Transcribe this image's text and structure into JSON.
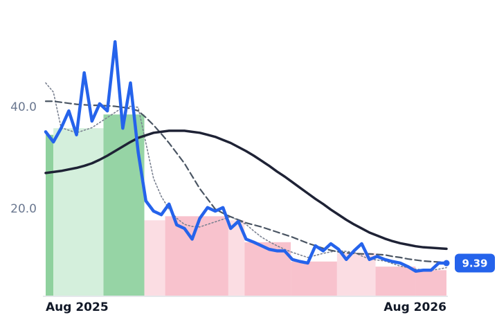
{
  "chart_data": {
    "type": "line",
    "categories": [
      "Aug 2025",
      null,
      null,
      null,
      null,
      null,
      null,
      null,
      null,
      null,
      null,
      null,
      null,
      null,
      null,
      null,
      null,
      null,
      null,
      null,
      null,
      null,
      null,
      null,
      null,
      null,
      null,
      null,
      null,
      null,
      null,
      null,
      null,
      null,
      null,
      null,
      null,
      null,
      null,
      null,
      null,
      null,
      null,
      null,
      null,
      null,
      null,
      null,
      null,
      null,
      null,
      null,
      "Aug 2026"
    ],
    "ylim": [
      3,
      56
    ],
    "yticks": [
      {
        "value": 20,
        "label": "20.0"
      },
      {
        "value": 40,
        "label": "40.0"
      }
    ],
    "bands": [
      {
        "from": 0,
        "to": 1,
        "value": 34.6,
        "color": "#8fd19e"
      },
      {
        "from": 1,
        "to": 7.5,
        "value": 35.9,
        "color": "#d4efdc"
      },
      {
        "from": 7.5,
        "to": 12.8,
        "value": 38.6,
        "color": "#96d4a5"
      },
      {
        "from": 12.8,
        "to": 15.5,
        "value": 17.8,
        "color": "#fbdde3"
      },
      {
        "from": 15.5,
        "to": 23.7,
        "value": 18.6,
        "color": "#f8c2cd"
      },
      {
        "from": 23.7,
        "to": 25.8,
        "value": 17.8,
        "color": "#fbdde3"
      },
      {
        "from": 25.8,
        "to": 31.8,
        "value": 13.5,
        "color": "#f8c2cd"
      },
      {
        "from": 31.8,
        "to": 37.8,
        "value": 9.7,
        "color": "#f8c2cd"
      },
      {
        "from": 37.8,
        "to": 42.8,
        "value": 11.4,
        "color": "#fbdde3"
      },
      {
        "from": 42.8,
        "to": 48,
        "value": 8.7,
        "color": "#f8c2cd"
      },
      {
        "from": 48,
        "to": 52,
        "value": 8.0,
        "color": "#f8c2cd"
      }
    ],
    "series": [
      {
        "color": "#2563eb",
        "dash": "solid",
        "width": 4.5,
        "values": [
          35.2,
          33.2,
          35.9,
          39.3,
          34.6,
          46.8,
          37.3,
          40.7,
          39.3,
          52.9,
          35.9,
          44.8,
          31.2,
          21.6,
          19.6,
          18.9,
          21.0,
          16.9,
          16.2,
          14.1,
          18.2,
          20.3,
          19.6,
          20.3,
          16.2,
          17.6,
          14.1,
          13.5,
          12.8,
          12.1,
          11.8,
          11.8,
          10.1,
          9.7,
          9.4,
          12.8,
          11.8,
          13.2,
          12.1,
          10.1,
          11.8,
          13.2,
          10.1,
          10.7,
          10.1,
          9.7,
          9.4,
          8.7,
          7.8,
          8.0,
          8.0,
          9.4,
          9.39
        ]
      },
      {
        "color": "#1e2235",
        "dash": "solid",
        "width": 3.5,
        "values": [
          27.1,
          27.3,
          27.5,
          27.8,
          28.1,
          28.5,
          29.0,
          29.7,
          30.5,
          31.4,
          32.3,
          33.2,
          34.0,
          34.5,
          35.0,
          35.2,
          35.4,
          35.4,
          35.4,
          35.2,
          35.0,
          34.6,
          34.2,
          33.6,
          33.0,
          32.2,
          31.4,
          30.5,
          29.5,
          28.5,
          27.4,
          26.4,
          25.3,
          24.2,
          23.1,
          22.0,
          21.0,
          19.9,
          18.9,
          17.9,
          17.0,
          16.2,
          15.4,
          14.8,
          14.2,
          13.7,
          13.3,
          13.0,
          12.7,
          12.5,
          12.4,
          12.3,
          12.2
        ]
      },
      {
        "color": "#4a5563",
        "dash": "dashed",
        "width": 2.2,
        "values": [
          41.2,
          41.2,
          41.0,
          40.8,
          40.6,
          40.5,
          40.4,
          40.4,
          40.3,
          40.2,
          40.0,
          39.8,
          39.3,
          38.0,
          36.5,
          34.8,
          33.0,
          31.0,
          29.0,
          26.5,
          24.0,
          22.0,
          20.0,
          19.2,
          18.5,
          17.9,
          17.3,
          16.9,
          16.5,
          16.0,
          15.5,
          15.0,
          14.5,
          13.9,
          13.3,
          12.8,
          12.3,
          11.9,
          11.6,
          11.4,
          11.3,
          11.2,
          11.2,
          11.1,
          11.0,
          10.7,
          10.5,
          10.2,
          10.0,
          9.8,
          9.7,
          9.6,
          9.5
        ]
      },
      {
        "color": "#7a8190",
        "dash": "dotted",
        "width": 1.6,
        "values": [
          44.8,
          43.0,
          36.0,
          35.5,
          35.0,
          35.5,
          36.0,
          37.0,
          38.0,
          39.0,
          40.0,
          40.2,
          40.0,
          33.0,
          26.0,
          22.5,
          20.0,
          18.2,
          17.0,
          16.6,
          16.5,
          17.0,
          17.5,
          18.0,
          18.5,
          17.8,
          17.0,
          15.7,
          14.5,
          13.6,
          12.8,
          12.1,
          11.5,
          11.0,
          10.5,
          10.9,
          11.3,
          11.6,
          11.8,
          11.7,
          11.5,
          10.8,
          10.2,
          10.0,
          9.8,
          9.3,
          8.8,
          8.5,
          8.2,
          8.1,
          8.0,
          8.2,
          8.5
        ]
      }
    ]
  }
}
